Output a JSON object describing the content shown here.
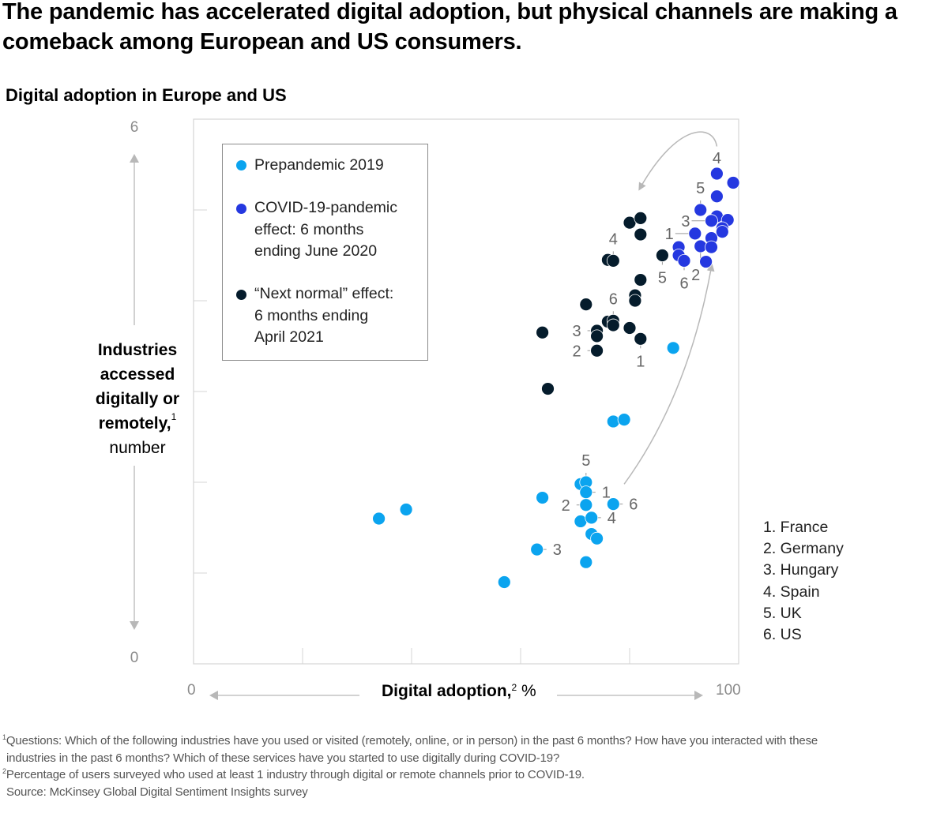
{
  "headline": "The pandemic has accelerated digital adoption, but physical channels are making a comeback among European and US consumers.",
  "subtitle": "Digital adoption in Europe and US",
  "colors": {
    "prepandemic": "#0ba4ef",
    "covid": "#2538e0",
    "next_normal": "#051c2c",
    "axis_gray": "#b8b8b8",
    "label_gray": "#666666"
  },
  "chart_data": {
    "type": "scatter",
    "title": "Digital adoption in Europe and US",
    "xlabel": "Digital adoption,",
    "xlabel_sup": "2",
    "xlabel_unit": "%",
    "ylabel_bold": "Industries accessed digitally or remotely,",
    "ylabel_sup": "1",
    "ylabel_unit": "number",
    "xlim": [
      0,
      100
    ],
    "ylim": [
      0,
      6
    ],
    "x_ticks": [
      "0",
      "100"
    ],
    "y_ticks": [
      "0",
      "6"
    ],
    "x_gridlines": [
      20,
      40,
      60,
      80
    ],
    "y_gridlines": [
      1,
      2,
      3,
      4,
      5
    ],
    "legend_position": "top-left",
    "series": [
      {
        "name": "Prepandemic 2019",
        "color_key": "prepandemic",
        "points": [
          {
            "x": 34,
            "y": 1.6
          },
          {
            "x": 39,
            "y": 1.7
          },
          {
            "x": 57,
            "y": 0.9
          },
          {
            "x": 63,
            "y": 1.26,
            "label": "3",
            "label_side": "right"
          },
          {
            "x": 64,
            "y": 1.83
          },
          {
            "x": 71,
            "y": 1.98
          },
          {
            "x": 72,
            "y": 2.0,
            "label": "5",
            "label_side": "top"
          },
          {
            "x": 72,
            "y": 1.89,
            "label": "1",
            "label_side": "right"
          },
          {
            "x": 72,
            "y": 1.75,
            "label": "2",
            "label_side": "left"
          },
          {
            "x": 71,
            "y": 1.57
          },
          {
            "x": 73,
            "y": 1.61,
            "label": "4",
            "label_side": "right"
          },
          {
            "x": 73,
            "y": 1.43
          },
          {
            "x": 74,
            "y": 1.38
          },
          {
            "x": 72,
            "y": 1.12
          },
          {
            "x": 77,
            "y": 1.76,
            "label": "6",
            "label_side": "right"
          },
          {
            "x": 77,
            "y": 2.67
          },
          {
            "x": 79,
            "y": 2.69
          },
          {
            "x": 88,
            "y": 3.48
          }
        ]
      },
      {
        "name": "COVID-19-pandemic effect: 6 months ending June 2020",
        "color_key": "covid",
        "points": [
          {
            "x": 96,
            "y": 5.4,
            "label": "4",
            "label_side": "top-free"
          },
          {
            "x": 99,
            "y": 5.3
          },
          {
            "x": 96,
            "y": 5.15
          },
          {
            "x": 93,
            "y": 5.0,
            "label": "5",
            "label_side": "top"
          },
          {
            "x": 96,
            "y": 4.93
          },
          {
            "x": 95,
            "y": 4.88,
            "label": "3",
            "label_side": "left-long"
          },
          {
            "x": 98,
            "y": 4.89
          },
          {
            "x": 97,
            "y": 4.8
          },
          {
            "x": 97,
            "y": 4.76
          },
          {
            "x": 92,
            "y": 4.74,
            "label": "1",
            "label_side": "left-long"
          },
          {
            "x": 95,
            "y": 4.69
          },
          {
            "x": 89,
            "y": 4.59
          },
          {
            "x": 93,
            "y": 4.6,
            "label": "2",
            "label_side": "bottom-long"
          },
          {
            "x": 95,
            "y": 4.59
          },
          {
            "x": 89,
            "y": 4.5
          },
          {
            "x": 90,
            "y": 4.44,
            "label": "6",
            "label_side": "bottom"
          },
          {
            "x": 94,
            "y": 4.43
          }
        ]
      },
      {
        "name": "“Next normal” effect: 6 months ending April 2021",
        "color_key": "next_normal",
        "points": [
          {
            "x": 80,
            "y": 4.86
          },
          {
            "x": 82,
            "y": 4.91
          },
          {
            "x": 82,
            "y": 4.73
          },
          {
            "x": 76,
            "y": 4.45
          },
          {
            "x": 77,
            "y": 4.44,
            "label": "4",
            "label_side": "top"
          },
          {
            "x": 86,
            "y": 4.5,
            "label": "5",
            "label_side": "bottom"
          },
          {
            "x": 82,
            "y": 4.23
          },
          {
            "x": 81,
            "y": 4.06
          },
          {
            "x": 81,
            "y": 4.0
          },
          {
            "x": 72,
            "y": 3.96
          },
          {
            "x": 76,
            "y": 3.77
          },
          {
            "x": 77,
            "y": 3.78,
            "label": "6",
            "label_side": "top"
          },
          {
            "x": 77,
            "y": 3.73
          },
          {
            "x": 80,
            "y": 3.7
          },
          {
            "x": 74,
            "y": 3.67,
            "label": "3",
            "label_side": "left"
          },
          {
            "x": 74,
            "y": 3.61
          },
          {
            "x": 82,
            "y": 3.58,
            "label": "1",
            "label_side": "bottom"
          },
          {
            "x": 74,
            "y": 3.45,
            "label": "2",
            "label_side": "left"
          },
          {
            "x": 64,
            "y": 3.65
          },
          {
            "x": 65,
            "y": 3.03
          }
        ]
      }
    ],
    "annotations": [
      {
        "type": "arrow",
        "from_series": "Prepandemic 2019",
        "to_series": "COVID-19-pandemic effect: 6 months ending June 2020",
        "from": {
          "x": 79,
          "y": 1.98
        },
        "to": {
          "x": 95,
          "y": 4.37
        }
      },
      {
        "type": "arrow",
        "from_series": "COVID-19-pandemic effect: 6 months ending June 2020",
        "to_series": "“Next normal” effect: 6 months ending April 2021",
        "from": {
          "x": 96,
          "y": 5.7
        },
        "to": {
          "x": 82,
          "y": 5.25
        }
      }
    ]
  },
  "legend": {
    "items": [
      {
        "lines": [
          "Prepandemic 2019"
        ],
        "color_key": "prepandemic"
      },
      {
        "lines": [
          "COVID-19-pandemic",
          "effect: 6 months",
          "ending June 2020"
        ],
        "color_key": "covid"
      },
      {
        "lines": [
          "“Next normal” effect:",
          "6 months ending",
          "April 2021"
        ],
        "color_key": "next_normal"
      }
    ]
  },
  "countries": [
    "1. France",
    "2. Germany",
    "3. Hungary",
    "4. Spain",
    "5. UK",
    "6. US"
  ],
  "footnotes": {
    "fn1_sup": "1",
    "fn1_line1": "Questions: Which of the following industries have you used or visited (remotely, online, or in person) in the past 6 months? How have you interacted with these",
    "fn1_line2": "industries in the past 6 months? Which of these services have you started to use digitally during COVID-19?",
    "fn2_sup": "2",
    "fn2": "Percentage of users surveyed who used at least 1 industry through digital or remote channels prior to COVID-19.",
    "source": "Source: McKinsey Global Digital Sentiment Insights survey"
  }
}
